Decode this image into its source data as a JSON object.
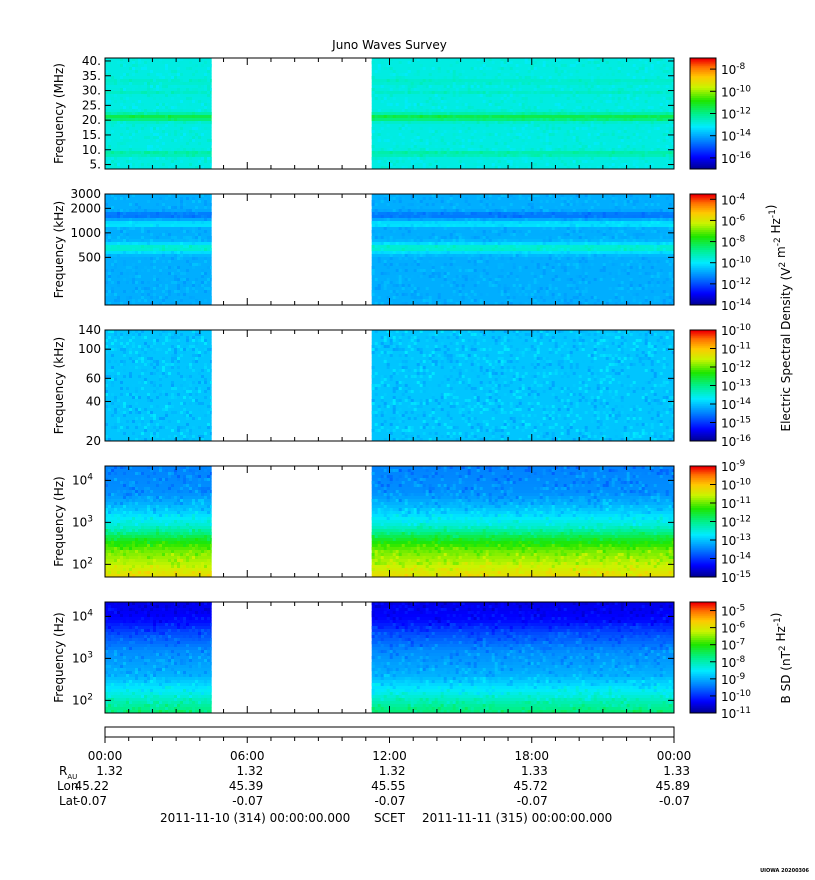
{
  "chart_data": {
    "type": "heatmap",
    "title": "Juno Waves Survey",
    "gap": {
      "start_hour": 4.5,
      "end_hour": 11.25
    },
    "x_axis": {
      "ticks": [
        "00:00",
        "06:00",
        "12:00",
        "18:00",
        "00:00"
      ],
      "tick_hours": [
        0,
        6,
        12,
        18,
        24
      ],
      "range_hours": [
        0,
        24
      ]
    },
    "panels": [
      {
        "ylabel": "Frequency (MHz)",
        "scale": "linear",
        "yrange": [
          3.5,
          41
        ],
        "yticks": [
          {
            "v": 5,
            "label": "5."
          },
          {
            "v": 10,
            "label": "10."
          },
          {
            "v": 15,
            "label": "15."
          },
          {
            "v": 20,
            "label": "20."
          },
          {
            "v": 25,
            "label": "25."
          },
          {
            "v": 30,
            "label": "30."
          },
          {
            "v": 35,
            "label": "35."
          },
          {
            "v": 40,
            "label": "40."
          }
        ],
        "colorbar": {
          "min_exp": -17,
          "max_exp": -7,
          "ticks": [
            {
              "b": "10",
              "e": "-8"
            },
            {
              "b": "10",
              "e": "-10"
            },
            {
              "b": "10",
              "e": "-12"
            },
            {
              "b": "10",
              "e": "-14"
            },
            {
              "b": "10",
              "e": "-16"
            }
          ],
          "tick_exps": [
            -8,
            -10,
            -12,
            -14,
            -16
          ]
        },
        "base_level": -12.9,
        "bands": [
          {
            "y": 21.0,
            "level": -11.4,
            "width": 1.3
          },
          {
            "y": 8.7,
            "level": -12.2,
            "width": 0.9
          },
          {
            "y": 33.0,
            "level": -12.6,
            "width": 0.8
          },
          {
            "y": 29.5,
            "level": -12.6,
            "width": 0.7
          }
        ]
      },
      {
        "ylabel": "Frequency (kHz)",
        "scale": "log",
        "yrange": [
          130,
          3000
        ],
        "yticks": [
          {
            "v": 500,
            "label": "500"
          },
          {
            "v": 1000,
            "label": "1000"
          },
          {
            "v": 2000,
            "label": "2000"
          },
          {
            "v": 3000,
            "label": "3000"
          }
        ],
        "colorbar": {
          "min_exp": -14,
          "max_exp": -3.5,
          "ticks": [
            {
              "b": "10",
              "e": "-4"
            },
            {
              "b": "10",
              "e": "-6"
            },
            {
              "b": "10",
              "e": "-8"
            },
            {
              "b": "10",
              "e": "-10"
            },
            {
              "b": "10",
              "e": "-12"
            },
            {
              "b": "10",
              "e": "-14"
            }
          ],
          "tick_exps": [
            -4,
            -6,
            -8,
            -10,
            -12,
            -14
          ]
        },
        "base_level": -10.8,
        "bands": [
          {
            "y": 1650,
            "level": -11.6,
            "width": 0.04
          },
          {
            "y": 1280,
            "level": -9.9,
            "width": 0.03
          },
          {
            "y": 650,
            "level": -9.4,
            "width": 0.06
          }
        ]
      },
      {
        "ylabel": "Frequency (kHz)",
        "scale": "log",
        "yrange": [
          20,
          140
        ],
        "yticks": [
          {
            "v": 20,
            "label": "20"
          },
          {
            "v": 40,
            "label": "40"
          },
          {
            "v": 60,
            "label": "60"
          },
          {
            "v": 100,
            "label": "100"
          },
          {
            "v": 140,
            "label": "140"
          }
        ],
        "colorbar": {
          "min_exp": -16,
          "max_exp": -10,
          "ticks": [
            {
              "b": "10",
              "e": "-10"
            },
            {
              "b": "10",
              "e": "-11"
            },
            {
              "b": "10",
              "e": "-12"
            },
            {
              "b": "10",
              "e": "-13"
            },
            {
              "b": "10",
              "e": "-14"
            },
            {
              "b": "10",
              "e": "-15"
            },
            {
              "b": "10",
              "e": "-16"
            }
          ],
          "tick_exps": [
            -10,
            -11,
            -12,
            -13,
            -14,
            -15,
            -16
          ]
        },
        "base_level": -14.0,
        "bands": []
      },
      {
        "ylabel": "Frequency (Hz)",
        "scale": "log",
        "yrange": [
          50,
          22000
        ],
        "yticks": [
          {
            "v": 100,
            "b": "10",
            "e": "2"
          },
          {
            "v": 1000,
            "b": "10",
            "e": "3"
          },
          {
            "v": 10000,
            "b": "10",
            "e": "4"
          }
        ],
        "colorbar": {
          "min_exp": -15,
          "max_exp": -9,
          "ticks": [
            {
              "b": "10",
              "e": "-9"
            },
            {
              "b": "10",
              "e": "-10"
            },
            {
              "b": "10",
              "e": "-11"
            },
            {
              "b": "10",
              "e": "-12"
            },
            {
              "b": "10",
              "e": "-13"
            },
            {
              "b": "10",
              "e": "-14"
            },
            {
              "b": "10",
              "e": "-15"
            }
          ],
          "tick_exps": [
            -9,
            -10,
            -11,
            -12,
            -13,
            -14,
            -15
          ]
        },
        "profile": [
          {
            "f": 50,
            "level": -10.2
          },
          {
            "f": 100,
            "level": -10.6
          },
          {
            "f": 200,
            "level": -10.9
          },
          {
            "f": 400,
            "level": -11.5
          },
          {
            "f": 800,
            "level": -12.4
          },
          {
            "f": 2000,
            "level": -13.0
          },
          {
            "f": 5000,
            "level": -13.4
          },
          {
            "f": 22000,
            "level": -13.5
          }
        ]
      },
      {
        "ylabel": "Frequency (Hz)",
        "scale": "log",
        "yrange": [
          50,
          22000
        ],
        "yticks": [
          {
            "v": 100,
            "b": "10",
            "e": "2"
          },
          {
            "v": 1000,
            "b": "10",
            "e": "3"
          },
          {
            "v": 10000,
            "b": "10",
            "e": "4"
          }
        ],
        "colorbar": {
          "min_exp": -11,
          "max_exp": -4.5,
          "ticks": [
            {
              "b": "10",
              "e": "-5"
            },
            {
              "b": "10",
              "e": "-6"
            },
            {
              "b": "10",
              "e": "-7"
            },
            {
              "b": "10",
              "e": "-8"
            },
            {
              "b": "10",
              "e": "-9"
            },
            {
              "b": "10",
              "e": "-10"
            },
            {
              "b": "10",
              "e": "-11"
            }
          ],
          "tick_exps": [
            -5,
            -6,
            -7,
            -8,
            -9,
            -10,
            -11
          ]
        },
        "profile": [
          {
            "f": 50,
            "level": -7.6
          },
          {
            "f": 80,
            "level": -7.9
          },
          {
            "f": 150,
            "level": -8.4
          },
          {
            "f": 400,
            "level": -9.0
          },
          {
            "f": 1500,
            "level": -9.3
          },
          {
            "f": 4000,
            "level": -9.8
          },
          {
            "f": 8000,
            "level": -10.3
          },
          {
            "f": 22000,
            "level": -10.5
          }
        ]
      }
    ],
    "colorbar_labels": [
      {
        "text": "Electric Spectral Density (V",
        "sup1": "2",
        "mid": " m",
        "sup2": "-2",
        "mid2": " Hz",
        "sup3": "-1",
        "end": ")"
      },
      {
        "text": "B SD (nT",
        "sup1": "2",
        "mid": " Hz",
        "sup2": "-1",
        "end": ")"
      }
    ],
    "ephemeris": {
      "row_labels": {
        "r": "R",
        "r_sub": "AU",
        "lon": "Lon",
        "lat": "Lat"
      },
      "r_au": [
        "1.32",
        "1.32",
        "1.32",
        "1.33",
        "1.33"
      ],
      "lon": [
        "45.22",
        "45.39",
        "45.55",
        "45.72",
        "45.89"
      ],
      "lat": [
        "-0.07",
        "-0.07",
        "-0.07",
        "-0.07",
        "-0.07"
      ]
    }
  },
  "footer": {
    "start": "2011-11-10 (314) 00:00:00.000",
    "scet": "SCET",
    "end": "2011-11-11 (315) 00:00:00.000"
  },
  "stamp": "UIOWA 20200306"
}
